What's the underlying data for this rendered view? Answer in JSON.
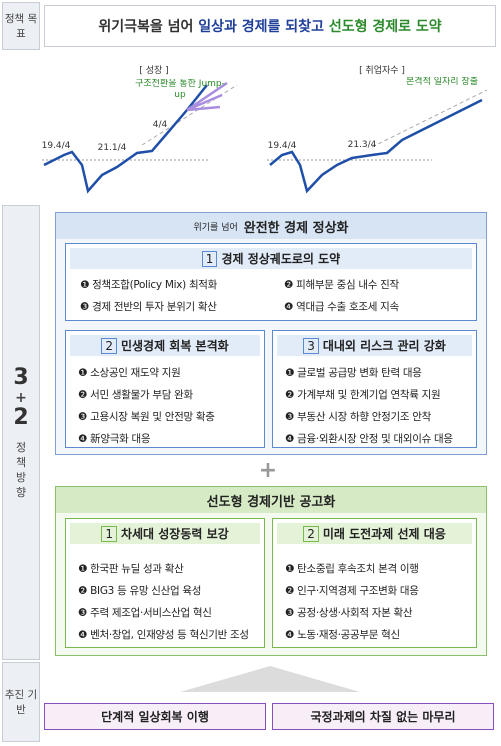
{
  "side": {
    "goal": "정책 목표",
    "direction_big": [
      "3",
      "+",
      "2"
    ],
    "direction": "정책방향",
    "base": "추진 기반"
  },
  "header": {
    "title_parts": [
      "위기극복을 넘어 ",
      "일상과 경제를 되찾고 ",
      "선도형 경제로 도약"
    ]
  },
  "charts": {
    "growth": {
      "label": "[ 성장 ]",
      "points": [
        "19.4/4",
        "21.1/4",
        "4/4"
      ],
      "note": "구조전환을 통한 Jump-up"
    },
    "jobs": {
      "label": "[ 취업자수 ]",
      "points": [
        "19.4/4",
        "21.3/4"
      ],
      "note": "본격적 일자리 창출"
    }
  },
  "normalization": {
    "prefix": "위기를 넘어",
    "title": "완전한 경제 정상화",
    "sections": [
      {
        "number": "1",
        "title": "경제 정상궤도로의 도약",
        "items": [
          "❶ 정책조합(Policy Mix) 최적화",
          "❷ 피해부문 중심 내수 진작",
          "❸ 경제 전반의 투자 분위기 확산",
          "❹ 역대급 수출 호조세 지속"
        ]
      },
      {
        "number": "2",
        "title": "민생경제 회복 본격화",
        "items": [
          "❶ 소상공인 재도약 지원",
          "❷ 서민 생활물가 부담 완화",
          "❸ 고용시장 복원 및 안전망 확충",
          "❹ 新양극화 대응"
        ]
      },
      {
        "number": "3",
        "title": "대내외 리스크 관리 강화",
        "items": [
          "❶ 글로벌 공급망 변화 탄력 대응",
          "❷ 가계부채 및 한계기업 연착륙 지원",
          "❸ 부동산 시장 하향 안정기조 안착",
          "❹ 금융·외환시장 안정 및 대외이슈 대응"
        ]
      }
    ]
  },
  "plus": "+",
  "leading": {
    "title": "선도형 경제기반 공고화",
    "sections": [
      {
        "number": "1",
        "title": "차세대 성장동력 보강",
        "items": [
          "❶ 한국판 뉴딜 성과 확산",
          "❷ BIG3 등 유망 신산업 육성",
          "❸ 주력 제조업·서비스산업 혁신",
          "❹ 벤처·창업, 인재양성 등 혁신기반 조성"
        ]
      },
      {
        "number": "2",
        "title": "미래 도전과제 선제 대응",
        "items": [
          "❶ 탄소중립 후속조치 본격 이행",
          "❷ 인구·지역경제 구조변화 대응",
          "❸ 공정·상생·사회적 자본 확산",
          "❹ 노동·재정·공공부문 혁신"
        ]
      }
    ]
  },
  "base": [
    "단계적 일상회복 이행",
    "국정과제의 차질 없는 마무리"
  ]
}
